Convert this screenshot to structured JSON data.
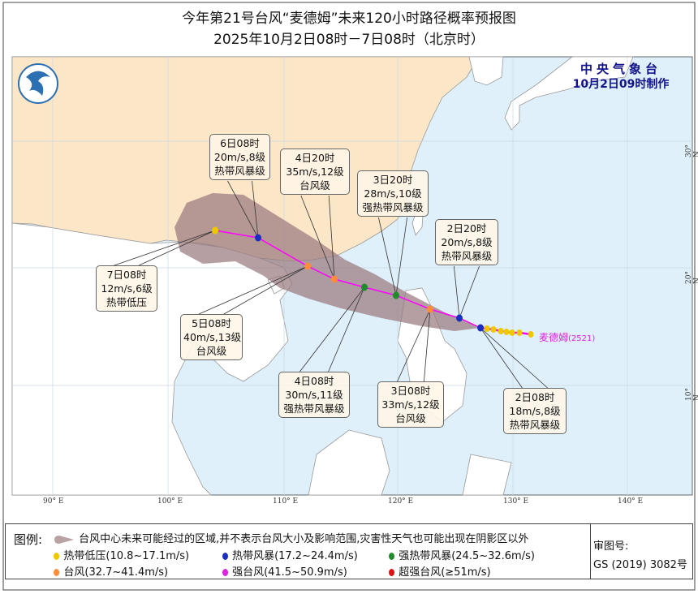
{
  "title": {
    "line1": "今年第21号台风“麦德姆”未来120小时路径概率预报图",
    "line2": "2025年10月2日08时－7日08时（北京时）"
  },
  "agency": {
    "name": "中央气象台",
    "made": "10月2日09时制作"
  },
  "typhoon": {
    "name": "麦德姆",
    "code": "(2521)"
  },
  "axes": {
    "lon_ticks": [
      "90° E",
      "100° E",
      "110° E",
      "120° E",
      "130° E",
      "140° E"
    ],
    "lat_ticks": [
      "30° N",
      "20° N",
      "10° N"
    ]
  },
  "forecast_points": [
    {
      "time": "2日08时",
      "wind": "18m/s,8级",
      "category": "热带风暴级",
      "color": "#1a2fc0"
    },
    {
      "time": "2日20时",
      "wind": "20m/s,8级",
      "category": "热带风暴级",
      "color": "#1a2fc0"
    },
    {
      "time": "3日08时",
      "wind": "33m/s,12级",
      "category": "台风级",
      "color": "#ff8c3a"
    },
    {
      "time": "3日20时",
      "wind": "28m/s,10级",
      "category": "强热带风暴级",
      "color": "#1e8c2a"
    },
    {
      "time": "4日08时",
      "wind": "30m/s,11级",
      "category": "强热带风暴级",
      "color": "#1e8c2a"
    },
    {
      "time": "4日20时",
      "wind": "35m/s,12级",
      "category": "台风级",
      "color": "#ff8c3a"
    },
    {
      "time": "5日08时",
      "wind": "40m/s,13级",
      "category": "台风级",
      "color": "#ff8c3a"
    },
    {
      "time": "6日08时",
      "wind": "20m/s,8级",
      "category": "热带风暴级",
      "color": "#1a2fc0"
    },
    {
      "time": "7日08时",
      "wind": "12m/s,6级",
      "category": "热带低压",
      "color": "#f0c800"
    }
  ],
  "legend": {
    "title": "图例:",
    "cone": "台风中心未来可能经过的区域,并不表示台风大小及影响范围,灾害性天气也可能出现在阴影区以外",
    "items": [
      {
        "label": "热带低压(10.8~17.1m/s)",
        "color": "#f0c800"
      },
      {
        "label": "热带风暴(17.2~24.4m/s)",
        "color": "#1a2fc0"
      },
      {
        "label": "强热带风暴(24.5~32.6m/s)",
        "color": "#1e8c2a"
      },
      {
        "label": "台风(32.7~41.4m/s)",
        "color": "#ff8c3a"
      },
      {
        "label": "强台风(41.5~50.9m/s)",
        "color": "#e020e0"
      },
      {
        "label": "超强台风(≥51m/s)",
        "color": "#e01010"
      }
    ],
    "review_label": "审图号:",
    "review_number": "GS (2019) 3082号"
  },
  "colors": {
    "sea": "#dff0fa",
    "china": "#fbe6c8",
    "land": "#ffffff",
    "cone": "#9a7a7e",
    "track": "#ff00ff"
  }
}
